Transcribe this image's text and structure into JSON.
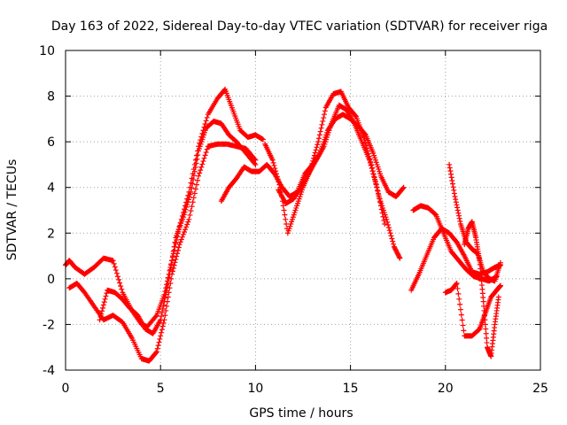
{
  "chart_data": {
    "type": "scatter",
    "title": "Day 163 of 2022, Sidereal Day-to-day VTEC variation (SDTVAR) for receiver riga",
    "xlabel": "GPS time / hours",
    "ylabel": "SDTVAR / TECUs",
    "xlim": [
      0,
      25
    ],
    "ylim": [
      -4,
      10
    ],
    "xticks": [
      "0",
      "5",
      "10",
      "15",
      "20",
      "25"
    ],
    "yticks": [
      "-4",
      "-2",
      "0",
      "2",
      "4",
      "6",
      "8",
      "10"
    ],
    "grid": true,
    "marker": "plus",
    "color": "#ff0000",
    "series": [
      {
        "x": [
          0.0,
          0.2,
          0.5,
          1.0,
          1.5,
          2.0,
          2.5,
          3.0,
          3.5,
          4.0,
          4.3,
          4.8,
          5.2,
          5.6,
          6.0,
          6.5,
          7.0,
          7.5,
          8.0,
          8.4,
          8.8,
          9.2,
          9.6,
          10.0,
          10.4
        ],
        "y": [
          0.6,
          0.8,
          0.5,
          0.2,
          0.5,
          0.9,
          0.8,
          -0.6,
          -1.4,
          -2.0,
          -2.1,
          -1.6,
          -0.7,
          0.8,
          2.3,
          3.8,
          5.8,
          7.2,
          7.9,
          8.3,
          7.4,
          6.5,
          6.2,
          6.3,
          6.1
        ]
      },
      {
        "x": [
          0.2,
          0.6,
          1.0,
          1.5,
          2.0,
          2.5,
          3.0,
          3.5,
          4.0,
          4.4,
          4.8,
          5.2,
          5.6,
          6.0,
          6.5,
          7.0,
          7.5,
          8.0,
          8.5,
          9.0,
          9.5,
          10.0
        ],
        "y": [
          -0.4,
          -0.2,
          -0.6,
          -1.2,
          -1.8,
          -1.6,
          -1.9,
          -2.6,
          -3.5,
          -3.6,
          -3.2,
          -1.8,
          0.2,
          1.5,
          2.6,
          4.5,
          5.8,
          5.9,
          5.9,
          5.8,
          5.7,
          5.2
        ]
      },
      {
        "x": [
          1.8,
          2.2,
          2.6,
          3.0,
          3.4,
          3.8,
          4.2,
          4.6,
          5.0,
          5.4,
          5.8,
          6.2,
          6.6,
          7.0,
          7.4,
          7.8,
          8.2,
          8.6,
          9.0,
          9.5,
          10.0
        ],
        "y": [
          -1.8,
          -0.5,
          -0.6,
          -0.9,
          -1.3,
          -1.6,
          -2.2,
          -2.4,
          -1.8,
          -0.2,
          1.8,
          2.7,
          3.8,
          5.6,
          6.6,
          6.9,
          6.8,
          6.3,
          6.0,
          5.5,
          5.0
        ]
      },
      {
        "x": [
          8.2,
          8.6,
          9.0,
          9.4,
          9.8,
          10.2,
          10.6,
          11.0,
          11.4,
          11.8,
          12.2,
          12.6,
          13.0,
          13.4,
          13.8,
          14.2,
          14.6,
          15.0,
          15.4,
          15.8,
          16.2,
          16.6,
          17.0,
          17.4,
          17.8
        ],
        "y": [
          3.4,
          4.0,
          4.4,
          4.9,
          4.7,
          4.7,
          5.0,
          4.6,
          4.0,
          3.6,
          3.8,
          4.6,
          5.0,
          5.5,
          6.5,
          7.0,
          7.2,
          7.0,
          6.7,
          6.3,
          5.5,
          4.5,
          3.8,
          3.6,
          4.0
        ]
      },
      {
        "x": [
          10.5,
          10.9,
          11.3,
          11.7,
          12.1,
          12.5,
          12.9,
          13.3,
          13.7,
          14.1,
          14.5,
          14.9,
          15.3,
          15.7,
          16.1,
          16.5,
          16.9,
          17.3,
          17.6
        ],
        "y": [
          5.9,
          5.2,
          4.0,
          2.0,
          3.0,
          4.0,
          4.8,
          6.0,
          7.5,
          8.1,
          8.2,
          7.5,
          7.1,
          6.2,
          5.0,
          3.6,
          2.6,
          1.4,
          0.9
        ]
      },
      {
        "x": [
          11.2,
          11.6,
          12.0,
          12.4,
          12.8,
          13.2,
          13.6,
          14.0,
          14.4,
          14.8,
          15.2,
          15.6,
          16.0,
          16.4,
          16.8
        ],
        "y": [
          3.9,
          3.3,
          3.5,
          4.0,
          4.6,
          5.2,
          5.8,
          6.8,
          7.6,
          7.4,
          6.8,
          6.0,
          5.2,
          4.0,
          2.4
        ]
      },
      {
        "x": [
          18.2,
          18.6,
          19.0,
          19.4,
          19.8,
          20.2,
          20.6,
          21.0,
          21.4,
          21.8,
          22.2,
          22.6,
          22.9
        ],
        "y": [
          -0.5,
          0.2,
          1.0,
          1.8,
          2.2,
          2.0,
          1.6,
          1.0,
          0.3,
          0.2,
          0.3,
          0.5,
          0.6
        ]
      },
      {
        "x": [
          18.3,
          18.7,
          19.1,
          19.5,
          19.9,
          20.3,
          20.7,
          21.1,
          21.5,
          21.9,
          22.3,
          22.7
        ],
        "y": [
          3.0,
          3.2,
          3.1,
          2.8,
          2.0,
          1.2,
          0.8,
          0.4,
          0.1,
          0.0,
          -0.1,
          0.1
        ]
      },
      {
        "x": [
          20.2,
          20.5,
          20.8,
          21.1,
          21.4,
          21.7,
          22.0,
          22.3,
          22.6,
          22.9
        ],
        "y": [
          5.0,
          3.6,
          2.4,
          1.6,
          1.3,
          1.1,
          0.3,
          0.0,
          -0.1,
          0.7
        ]
      },
      {
        "x": [
          20.0,
          20.3,
          20.6,
          21.0,
          21.4,
          21.8,
          22.1,
          22.4,
          22.7,
          22.9
        ],
        "y": [
          -0.6,
          -0.5,
          -0.2,
          -2.5,
          -2.5,
          -2.2,
          -1.5,
          -0.8,
          -0.5,
          -0.3
        ]
      },
      {
        "x": [
          21.0,
          21.2,
          21.4,
          21.6,
          21.8,
          22.0,
          22.2,
          22.4,
          22.6,
          22.8
        ],
        "y": [
          1.5,
          2.2,
          2.5,
          1.8,
          0.8,
          -1.0,
          -3.0,
          -3.4,
          -2.0,
          -0.8
        ]
      }
    ]
  }
}
